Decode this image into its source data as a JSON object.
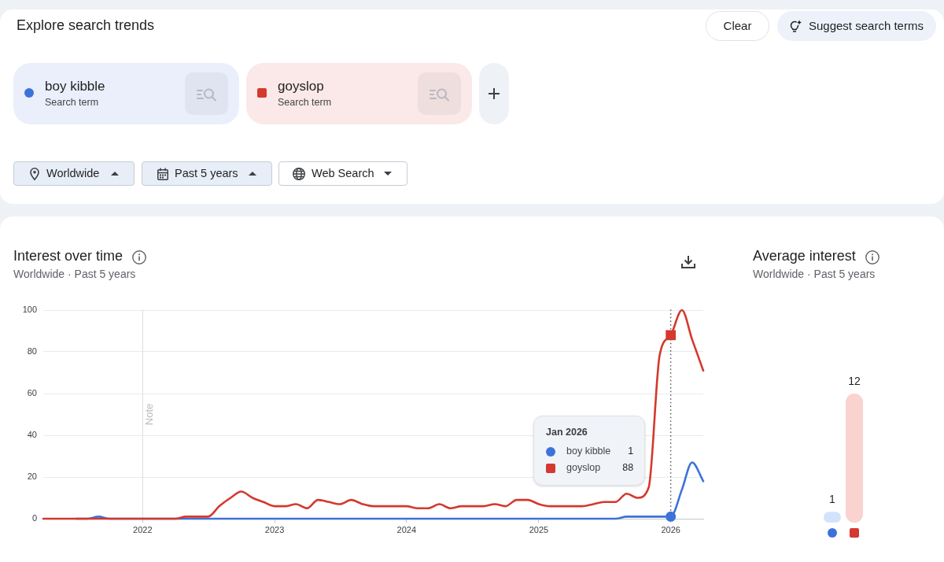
{
  "chart_data": [
    {
      "type": "other",
      "title": "Explore search trends",
      "annotations": [
        "Clear",
        "Suggest search terms",
        "boy kibble",
        "Search term",
        "goyslop",
        "Search term",
        "Worldwide",
        "Past 5 years",
        "Web Search"
      ]
    },
    {
      "type": "line",
      "title": "Interest over time",
      "subtitle": "Worldwide · Past 5 years",
      "x": [
        "2021-04",
        "2021-05",
        "2021-06",
        "2021-07",
        "2021-08",
        "2021-09",
        "2021-10",
        "2021-11",
        "2021-12",
        "2022-01",
        "2022-02",
        "2022-03",
        "2022-04",
        "2022-05",
        "2022-06",
        "2022-07",
        "2022-08",
        "2022-09",
        "2022-10",
        "2022-11",
        "2022-12",
        "2023-01",
        "2023-02",
        "2023-03",
        "2023-04",
        "2023-05",
        "2023-06",
        "2023-07",
        "2023-08",
        "2023-09",
        "2023-10",
        "2023-11",
        "2023-12",
        "2024-01",
        "2024-02",
        "2024-03",
        "2024-04",
        "2024-05",
        "2024-06",
        "2024-07",
        "2024-08",
        "2024-09",
        "2024-10",
        "2024-11",
        "2024-12",
        "2025-01",
        "2025-02",
        "2025-03",
        "2025-04",
        "2025-05",
        "2025-06",
        "2025-07",
        "2025-08",
        "2025-09",
        "2025-10",
        "2025-11",
        "2025-12",
        "2026-01",
        "2026-02",
        "2026-03",
        "2026-04"
      ],
      "series": [
        {
          "name": "boy kibble",
          "color": "#3d72d9",
          "values": [
            null,
            null,
            null,
            0,
            0,
            1,
            0,
            0,
            0,
            0,
            0,
            0,
            0,
            0,
            0,
            0,
            0,
            0,
            0,
            0,
            0,
            0,
            0,
            0,
            0,
            0,
            0,
            0,
            0,
            0,
            0,
            0,
            0,
            0,
            0,
            0,
            0,
            0,
            0,
            0,
            0,
            0,
            0,
            0,
            0,
            0,
            0,
            0,
            0,
            0,
            0,
            0,
            0,
            1,
            1,
            1,
            1,
            1,
            14,
            27,
            18
          ]
        },
        {
          "name": "goyslop",
          "color": "#d3392e",
          "values": [
            0,
            0,
            0,
            0,
            0,
            0,
            0,
            0,
            0,
            0,
            0,
            0,
            0,
            1,
            1,
            1,
            6,
            10,
            13,
            10,
            8,
            6,
            6,
            7,
            5,
            9,
            8,
            7,
            9,
            7,
            6,
            6,
            6,
            6,
            5,
            5,
            7,
            5,
            6,
            6,
            6,
            7,
            6,
            9,
            9,
            7,
            6,
            6,
            6,
            6,
            7,
            8,
            8,
            12,
            10,
            15,
            78,
            88,
            100,
            86,
            71
          ]
        },
        {
          "type": "scatter",
          "color": "#3d72d9",
          "marker": "circle",
          "x": [
            "2026-01"
          ],
          "values": [
            1
          ]
        },
        {
          "type": "scatter",
          "color": "#d3392e",
          "marker": "square",
          "x": [
            "2026-01"
          ],
          "values": [
            88
          ]
        }
      ],
      "xlim": [
        "2021-04",
        "2026-04"
      ],
      "xticks": [
        "2022",
        "2023",
        "2024",
        "2025",
        "2026"
      ],
      "ylim": [
        0,
        100
      ],
      "yticks": [
        0,
        20,
        40,
        60,
        80,
        100
      ],
      "grid": "y",
      "ref_lines": [
        {
          "axis": "x",
          "value": "2022-01",
          "label": "Note",
          "color": "#dadce0"
        },
        {
          "axis": "x",
          "value": "2026-01",
          "line_style": "dotted",
          "color": "#5f6368"
        }
      ],
      "legend": "bottom right",
      "legend_title": "Jan 2026",
      "annotations": [
        "1",
        "88"
      ]
    },
    {
      "type": "bar",
      "title": "Average interest",
      "subtitle": "Worldwide · Past 5 years",
      "categories": [
        null,
        null
      ],
      "values": [
        1,
        12
      ],
      "colors": [
        "#d3e3fd",
        "#fad2cf"
      ],
      "data_labels": true
    }
  ]
}
